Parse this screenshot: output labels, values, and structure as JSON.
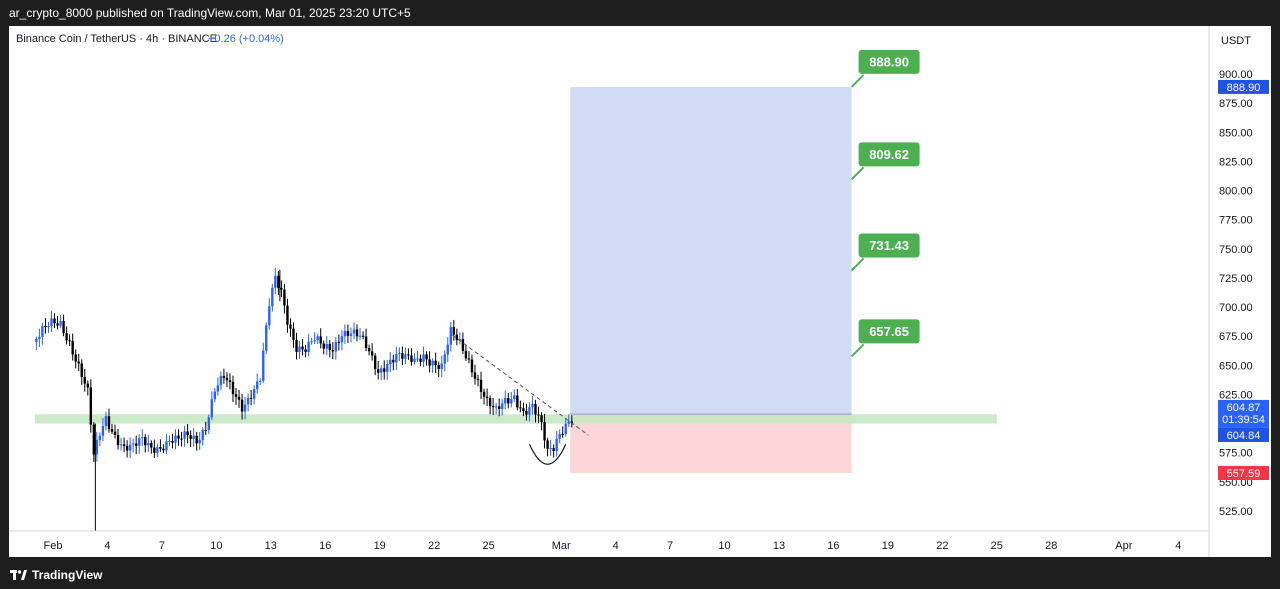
{
  "header": {
    "publish_line": "ar_crypto_8000 published on TradingView.com, Mar 01, 2025 23:20 UTC+5"
  },
  "footer": {
    "brand": "TradingView",
    "logo_icon": "tradingview-logo-icon"
  },
  "colors": {
    "up": "#2962ff",
    "down": "#000000",
    "profit_zone": "#d0dbf5",
    "loss_zone": "#fcd6d8",
    "support_band": "#c7e8c4",
    "target_label": "#4caf50",
    "current_price": "#2962ff",
    "stop_price": "#f23645"
  },
  "chart_data": {
    "type": "candlestick",
    "title": "Binance Coin / TetherUS · 4h · BINANCE",
    "change_text": "+0.26 (+0.04%)",
    "currency_label": "USDT",
    "ylim": [
      505,
      920
    ],
    "y_ticks": [
      525,
      550,
      575,
      600,
      625,
      650,
      675,
      700,
      725,
      750,
      775,
      800,
      825,
      850,
      875,
      900
    ],
    "x_labels": [
      {
        "label": "Feb",
        "date": "2025-02-01"
      },
      {
        "label": "4",
        "date": "2025-02-04"
      },
      {
        "label": "7",
        "date": "2025-02-07"
      },
      {
        "label": "10",
        "date": "2025-02-10"
      },
      {
        "label": "13",
        "date": "2025-02-13"
      },
      {
        "label": "16",
        "date": "2025-02-16"
      },
      {
        "label": "19",
        "date": "2025-02-19"
      },
      {
        "label": "22",
        "date": "2025-02-22"
      },
      {
        "label": "25",
        "date": "2025-02-25"
      },
      {
        "label": "Mar",
        "date": "2025-03-01"
      },
      {
        "label": "4",
        "date": "2025-03-04"
      },
      {
        "label": "7",
        "date": "2025-03-07"
      },
      {
        "label": "10",
        "date": "2025-03-10"
      },
      {
        "label": "13",
        "date": "2025-03-13"
      },
      {
        "label": "16",
        "date": "2025-03-16"
      },
      {
        "label": "19",
        "date": "2025-03-19"
      },
      {
        "label": "22",
        "date": "2025-03-22"
      },
      {
        "label": "25",
        "date": "2025-03-25"
      },
      {
        "label": "28",
        "date": "2025-03-28"
      },
      {
        "label": "Apr",
        "date": "2025-04-01"
      },
      {
        "label": "4",
        "date": "2025-04-04"
      }
    ],
    "price_path": [
      [
        "2025-01-31T00:00",
        670
      ],
      [
        "2025-01-31T12:00",
        678
      ],
      [
        "2025-02-01T00:00",
        684
      ],
      [
        "2025-02-01T12:00",
        686
      ],
      [
        "2025-02-02T00:00",
        672
      ],
      [
        "2025-02-02T12:00",
        650
      ],
      [
        "2025-02-03T00:00",
        625
      ],
      [
        "2025-02-03T08:00",
        570
      ],
      [
        "2025-02-03T16:00",
        590
      ],
      [
        "2025-02-04T00:00",
        605
      ],
      [
        "2025-02-04T12:00",
        592
      ],
      [
        "2025-02-05T00:00",
        580
      ],
      [
        "2025-02-05T12:00",
        578
      ],
      [
        "2025-02-06T00:00",
        584
      ],
      [
        "2025-02-06T12:00",
        580
      ],
      [
        "2025-02-07T00:00",
        582
      ],
      [
        "2025-02-07T12:00",
        586
      ],
      [
        "2025-02-08T00:00",
        584
      ],
      [
        "2025-02-08T12:00",
        588
      ],
      [
        "2025-02-09T00:00",
        586
      ],
      [
        "2025-02-09T12:00",
        600
      ],
      [
        "2025-02-10T00:00",
        630
      ],
      [
        "2025-02-10T12:00",
        638
      ],
      [
        "2025-02-11T00:00",
        625
      ],
      [
        "2025-02-11T12:00",
        615
      ],
      [
        "2025-02-12T00:00",
        628
      ],
      [
        "2025-02-12T12:00",
        640
      ],
      [
        "2025-02-13T00:00",
        700
      ],
      [
        "2025-02-13T08:00",
        722
      ],
      [
        "2025-02-13T16:00",
        712
      ],
      [
        "2025-02-14T00:00",
        690
      ],
      [
        "2025-02-14T12:00",
        668
      ],
      [
        "2025-02-15T00:00",
        664
      ],
      [
        "2025-02-15T12:00",
        670
      ],
      [
        "2025-02-16T00:00",
        664
      ],
      [
        "2025-02-16T12:00",
        666
      ],
      [
        "2025-02-17T00:00",
        680
      ],
      [
        "2025-02-17T12:00",
        678
      ],
      [
        "2025-02-18T00:00",
        672
      ],
      [
        "2025-02-18T12:00",
        660
      ],
      [
        "2025-02-19T00:00",
        646
      ],
      [
        "2025-02-19T12:00",
        654
      ],
      [
        "2025-02-20T00:00",
        658
      ],
      [
        "2025-02-20T12:00",
        654
      ],
      [
        "2025-02-21T00:00",
        652
      ],
      [
        "2025-02-21T12:00",
        660
      ],
      [
        "2025-02-22T00:00",
        655
      ],
      [
        "2025-02-22T12:00",
        648
      ],
      [
        "2025-02-23T00:00",
        676
      ],
      [
        "2025-02-23T12:00",
        668
      ],
      [
        "2025-02-24T00:00",
        655
      ],
      [
        "2025-02-24T12:00",
        638
      ],
      [
        "2025-02-25T00:00",
        618
      ],
      [
        "2025-02-25T12:00",
        608
      ],
      [
        "2025-02-26T00:00",
        618
      ],
      [
        "2025-02-26T12:00",
        625
      ],
      [
        "2025-02-27T00:00",
        612
      ],
      [
        "2025-02-27T12:00",
        614
      ],
      [
        "2025-02-28T00:00",
        596
      ],
      [
        "2025-02-28T08:00",
        574
      ],
      [
        "2025-02-28T16:00",
        580
      ],
      [
        "2025-03-01T00:00",
        594
      ],
      [
        "2025-03-01T12:00",
        604.87
      ]
    ],
    "support_zone": {
      "low": 600,
      "high": 608,
      "start": "2025-01-31T00:00",
      "end": "2025-03-25T00:00"
    },
    "trendline": {
      "from": [
        "2025-02-23T00:00",
        676
      ],
      "to": [
        "2025-03-02T12:00",
        590
      ]
    },
    "curve_from": "2025-02-27T06:00",
    "curve_to": "2025-03-01T06:00",
    "curve_level": 572,
    "position": {
      "start": "2025-03-01T12:00",
      "end": "2025-03-17T00:00",
      "entry": 608,
      "target": 888.9,
      "stop": 557.59,
      "tp_levels": [
        657.65,
        731.43,
        809.62,
        888.9
      ]
    },
    "targets": [
      {
        "label": "888.90",
        "value": 888.9
      },
      {
        "label": "809.62",
        "value": 809.62
      },
      {
        "label": "731.43",
        "value": 731.43
      },
      {
        "label": "657.65",
        "value": 657.65
      }
    ],
    "price_labels": {
      "target": {
        "label": "888.90",
        "value": 888.9
      },
      "current": {
        "label": "604.87",
        "value": 604.87,
        "countdown": "01:39:54"
      },
      "previous": {
        "label": "604.84",
        "value": 604.84
      },
      "stop": {
        "label": "557.59",
        "value": 557.59
      }
    }
  }
}
